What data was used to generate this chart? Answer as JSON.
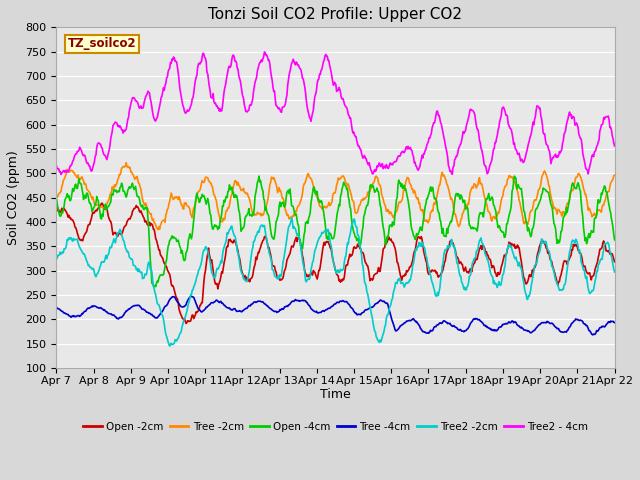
{
  "title": "Tonzi Soil CO2 Profile: Upper CO2",
  "ylabel": "Soil CO2 (ppm)",
  "xlabel": "Time",
  "legend_label": "TZ_soilco2",
  "ylim": [
    100,
    800
  ],
  "yticks": [
    100,
    150,
    200,
    250,
    300,
    350,
    400,
    450,
    500,
    550,
    600,
    650,
    700,
    750,
    800
  ],
  "series": {
    "Open -2cm": {
      "color": "#cc0000",
      "lw": 1.2
    },
    "Tree -2cm": {
      "color": "#ff8800",
      "lw": 1.2
    },
    "Open -4cm": {
      "color": "#00cc00",
      "lw": 1.2
    },
    "Tree -4cm": {
      "color": "#0000cc",
      "lw": 1.2
    },
    "Tree2 -2cm": {
      "color": "#00cccc",
      "lw": 1.2
    },
    "Tree2 - 4cm": {
      "color": "#ff00ff",
      "lw": 1.2
    }
  },
  "fig_bg": "#d8d8d8",
  "plot_bg": "#e8e8e8",
  "grid_color": "white",
  "title_fontsize": 11,
  "axis_fontsize": 9,
  "tick_fontsize": 8,
  "n_points": 720,
  "x_start": 7,
  "x_end": 22,
  "xtick_positions": [
    7,
    8,
    9,
    10,
    11,
    12,
    13,
    14,
    15,
    16,
    17,
    18,
    19,
    20,
    21,
    22
  ],
  "xtick_labels": [
    "Apr 7",
    "Apr 8",
    "Apr 9",
    "Apr 10",
    "Apr 11",
    "Apr 12",
    "Apr 13",
    "Apr 14",
    "Apr 15",
    "Apr 16",
    "Apr 17",
    "Apr 18",
    "Apr 19",
    "Apr 20",
    "Apr 21",
    "Apr 22"
  ]
}
